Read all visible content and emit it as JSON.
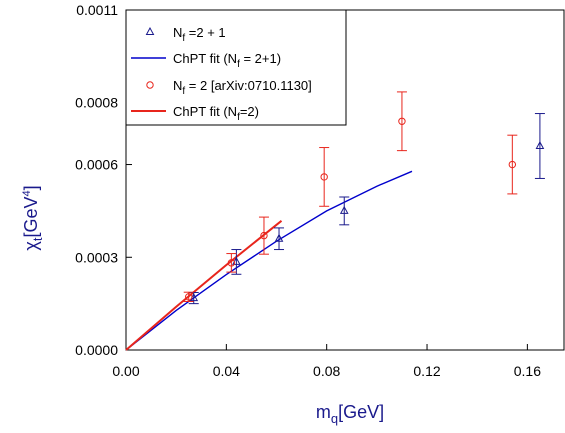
{
  "chart_data": {
    "type": "scatter",
    "xlabel": {
      "main": "m",
      "sub": "q",
      "rest": "[GeV]"
    },
    "ylabel": {
      "main": "χ",
      "sub": "t",
      "pre": "[GeV",
      "sup": "4",
      "post": "]"
    },
    "xlim": [
      0,
      0.175
    ],
    "ylim": [
      0,
      0.0011
    ],
    "x_ticks": [
      "0.00",
      "0.04",
      "0.08",
      "0.12",
      "0.16"
    ],
    "y_ticks": [
      "0.0000",
      "0.0003",
      "0.0006",
      "0.0008",
      "0.0011"
    ],
    "legend": {
      "placement": "top-left",
      "entries": [
        {
          "kind": "marker",
          "marker": "triangle",
          "color": "#1a1a8c",
          "main": "N",
          "sub": "f",
          "rest": " =2 + 1"
        },
        {
          "kind": "line",
          "color": "#0000cc",
          "main": "ChPT fit  (N",
          "sub": "f",
          "rest": " = 2+1)"
        },
        {
          "kind": "marker",
          "marker": "circle",
          "color": "#e8251c",
          "main": "N",
          "sub": "f",
          "rest": " = 2 [arXiv:0710.1130]"
        },
        {
          "kind": "line",
          "color": "#e8251c",
          "main": "ChPT fit  (N",
          "sub": "f",
          "rest": "=2)"
        }
      ]
    },
    "series": [
      {
        "marker": "triangle",
        "color": "#1a1a8c",
        "points": [
          {
            "x": 0.027,
            "y": 0.000168,
            "yerr": 1.8e-05
          },
          {
            "x": 0.044,
            "y": 0.000285,
            "yerr": 4e-05
          },
          {
            "x": 0.061,
            "y": 0.00036,
            "yerr": 3.5e-05
          },
          {
            "x": 0.087,
            "y": 0.00045,
            "yerr": 4.5e-05
          },
          {
            "x": 0.165,
            "y": 0.00066,
            "yerr": 0.000105
          }
        ]
      },
      {
        "marker": "circle",
        "color": "#e8251c",
        "points": [
          {
            "x": 0.025,
            "y": 0.000172,
            "yerr": 1.5e-05
          },
          {
            "x": 0.042,
            "y": 0.000282,
            "yerr": 3e-05
          },
          {
            "x": 0.055,
            "y": 0.00037,
            "yerr": 6e-05
          },
          {
            "x": 0.079,
            "y": 0.00056,
            "yerr": 9.5e-05
          },
          {
            "x": 0.11,
            "y": 0.00074,
            "yerr": 9.5e-05
          },
          {
            "x": 0.154,
            "y": 0.0006,
            "yerr": 9.5e-05
          }
        ]
      }
    ],
    "fits": [
      {
        "color": "#0000cc",
        "points": [
          [
            0,
            0
          ],
          [
            0.02,
            0.000128
          ],
          [
            0.04,
            0.000244
          ],
          [
            0.06,
            0.000352
          ],
          [
            0.08,
            0.00045
          ],
          [
            0.1,
            0.00053
          ],
          [
            0.114,
            0.000578
          ]
        ]
      },
      {
        "color": "#e8251c",
        "points": [
          [
            0,
            0
          ],
          [
            0.02,
            0.00014
          ],
          [
            0.04,
            0.000275
          ],
          [
            0.062,
            0.000418
          ]
        ]
      }
    ]
  }
}
